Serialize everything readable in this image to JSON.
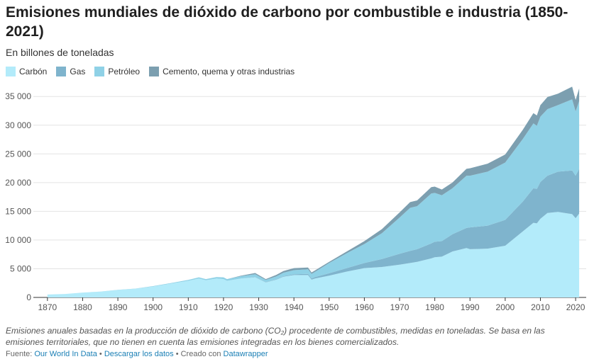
{
  "title": "Emisiones mundiales de dióxido de carbono por combustible e industria (1850-2021)",
  "subtitle": "En billones de toneladas",
  "legend": [
    {
      "label": "Carbón",
      "color": "#b3ebfa"
    },
    {
      "label": "Gas",
      "color": "#7fb4cd"
    },
    {
      "label": "Petróleo",
      "color": "#8fd1e6"
    },
    {
      "label": "Cemento, quema y otras industrias",
      "color": "#7c9fb0"
    }
  ],
  "notes": "Emisiones anuales basadas en la producción de dióxido de carbono (CO₂) procedente de combustibles, medidas en toneladas. Se basa en las emisiones territoriales, que no tienen en cuenta las emisiones integradas en los bienes comercializados.",
  "source": {
    "prefix": "Fuente:",
    "link1": "Our World In Data",
    "sep1": "•",
    "link2": "Descargar los datos",
    "sep2": "• Creado con",
    "link3": "Datawrapper"
  },
  "chart_data": {
    "type": "area",
    "stacked": true,
    "title": "Emisiones mundiales de dióxido de carbono por combustible e industria (1850-2021)",
    "ylabel": "En billones de toneladas",
    "x": [
      1870,
      1875,
      1880,
      1885,
      1890,
      1895,
      1900,
      1905,
      1910,
      1913,
      1915,
      1918,
      1920,
      1921,
      1925,
      1929,
      1932,
      1935,
      1937,
      1940,
      1944,
      1945,
      1946,
      1950,
      1955,
      1960,
      1965,
      1970,
      1973,
      1975,
      1979,
      1980,
      1982,
      1985,
      1989,
      1990,
      1995,
      2000,
      2005,
      2008,
      2009,
      2010,
      2012,
      2015,
      2019,
      2020,
      2021
    ],
    "xlim": [
      1866,
      2023
    ],
    "ylim": [
      0,
      37000
    ],
    "yticks": [
      0,
      5000,
      10000,
      15000,
      20000,
      25000,
      30000,
      35000
    ],
    "xticks": [
      1870,
      1880,
      1890,
      1900,
      1910,
      1920,
      1930,
      1940,
      1950,
      1960,
      1970,
      1980,
      1990,
      2000,
      2010,
      2020
    ],
    "series": [
      {
        "name": "Carbón",
        "color": "#b3ebfa",
        "values": [
          500,
          600,
          850,
          1000,
          1300,
          1500,
          1900,
          2400,
          2900,
          3300,
          3000,
          3300,
          3200,
          2900,
          3300,
          3500,
          2600,
          3100,
          3600,
          3900,
          3900,
          3100,
          3300,
          3800,
          4500,
          5100,
          5300,
          5700,
          6000,
          6200,
          6800,
          7000,
          7100,
          8000,
          8600,
          8400,
          8500,
          9000,
          11500,
          13000,
          12900,
          13700,
          14700,
          14900,
          14500,
          13800,
          14600
        ]
      },
      {
        "name": "Gas",
        "color": "#7fb4cd",
        "values": [
          0,
          0,
          0,
          0,
          0,
          0,
          0,
          0,
          0,
          0,
          0,
          0,
          0,
          0,
          0,
          50,
          50,
          80,
          100,
          150,
          200,
          200,
          250,
          400,
          600,
          900,
          1400,
          1900,
          2100,
          2200,
          2600,
          2700,
          2700,
          3000,
          3500,
          3800,
          4000,
          4500,
          5200,
          6000,
          6000,
          6400,
          6500,
          7000,
          7600,
          7400,
          7800
        ]
      },
      {
        "name": "Petróleo",
        "color": "#8fd1e6",
        "values": [
          0,
          0,
          0,
          10,
          20,
          40,
          70,
          100,
          150,
          200,
          200,
          250,
          300,
          300,
          400,
          500,
          400,
          500,
          600,
          700,
          800,
          800,
          900,
          1800,
          2600,
          3300,
          4500,
          6300,
          7500,
          7500,
          8700,
          8500,
          8000,
          8000,
          9100,
          9000,
          9400,
          10000,
          10900,
          11300,
          11000,
          11400,
          11600,
          11600,
          12400,
          11200,
          11800
        ]
      },
      {
        "name": "Cemento, quema y otras industrias",
        "color": "#7c9fb0",
        "values": [
          0,
          0,
          0,
          0,
          0,
          0,
          0,
          0,
          0,
          0,
          0,
          0,
          0,
          0,
          100,
          200,
          150,
          250,
          300,
          350,
          300,
          250,
          250,
          200,
          300,
          500,
          700,
          900,
          1000,
          1000,
          1100,
          1100,
          1000,
          1000,
          1200,
          1300,
          1400,
          1400,
          1600,
          1800,
          1800,
          2000,
          2100,
          2000,
          2200,
          2000,
          2200
        ]
      }
    ]
  }
}
